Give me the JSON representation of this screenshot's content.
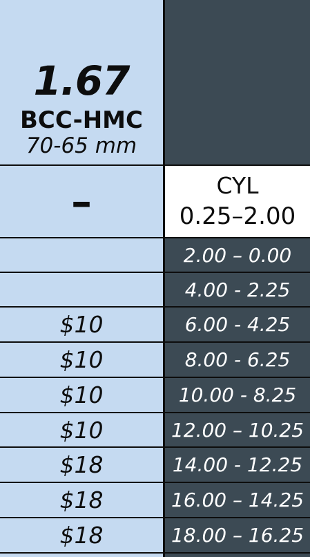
{
  "header": {
    "material": "1.67",
    "coating": "BCC-HMC",
    "size": "70-65 mm",
    "dash": "–",
    "cyl_label": "CYL",
    "cyl_range": "0.25–2.00"
  },
  "rows": [
    {
      "price": "",
      "sph": "2.00 – 0.00"
    },
    {
      "price": "",
      "sph": "4.00 - 2.25"
    },
    {
      "price": "$10",
      "sph": "6.00 - 4.25"
    },
    {
      "price": "$10",
      "sph": "8.00 - 6.25"
    },
    {
      "price": "$10",
      "sph": "10.00 - 8.25"
    },
    {
      "price": "$10",
      "sph": "12.00 – 10.25"
    },
    {
      "price": "$18",
      "sph": "14.00 - 12.25"
    },
    {
      "price": "$18",
      "sph": "16.00 – 14.25"
    },
    {
      "price": "$18",
      "sph": "18.00 – 16.25"
    }
  ],
  "colors": {
    "left_panel": "#c5daf1",
    "right_panel": "#3c4a54",
    "lines": "#0d0d0d"
  }
}
